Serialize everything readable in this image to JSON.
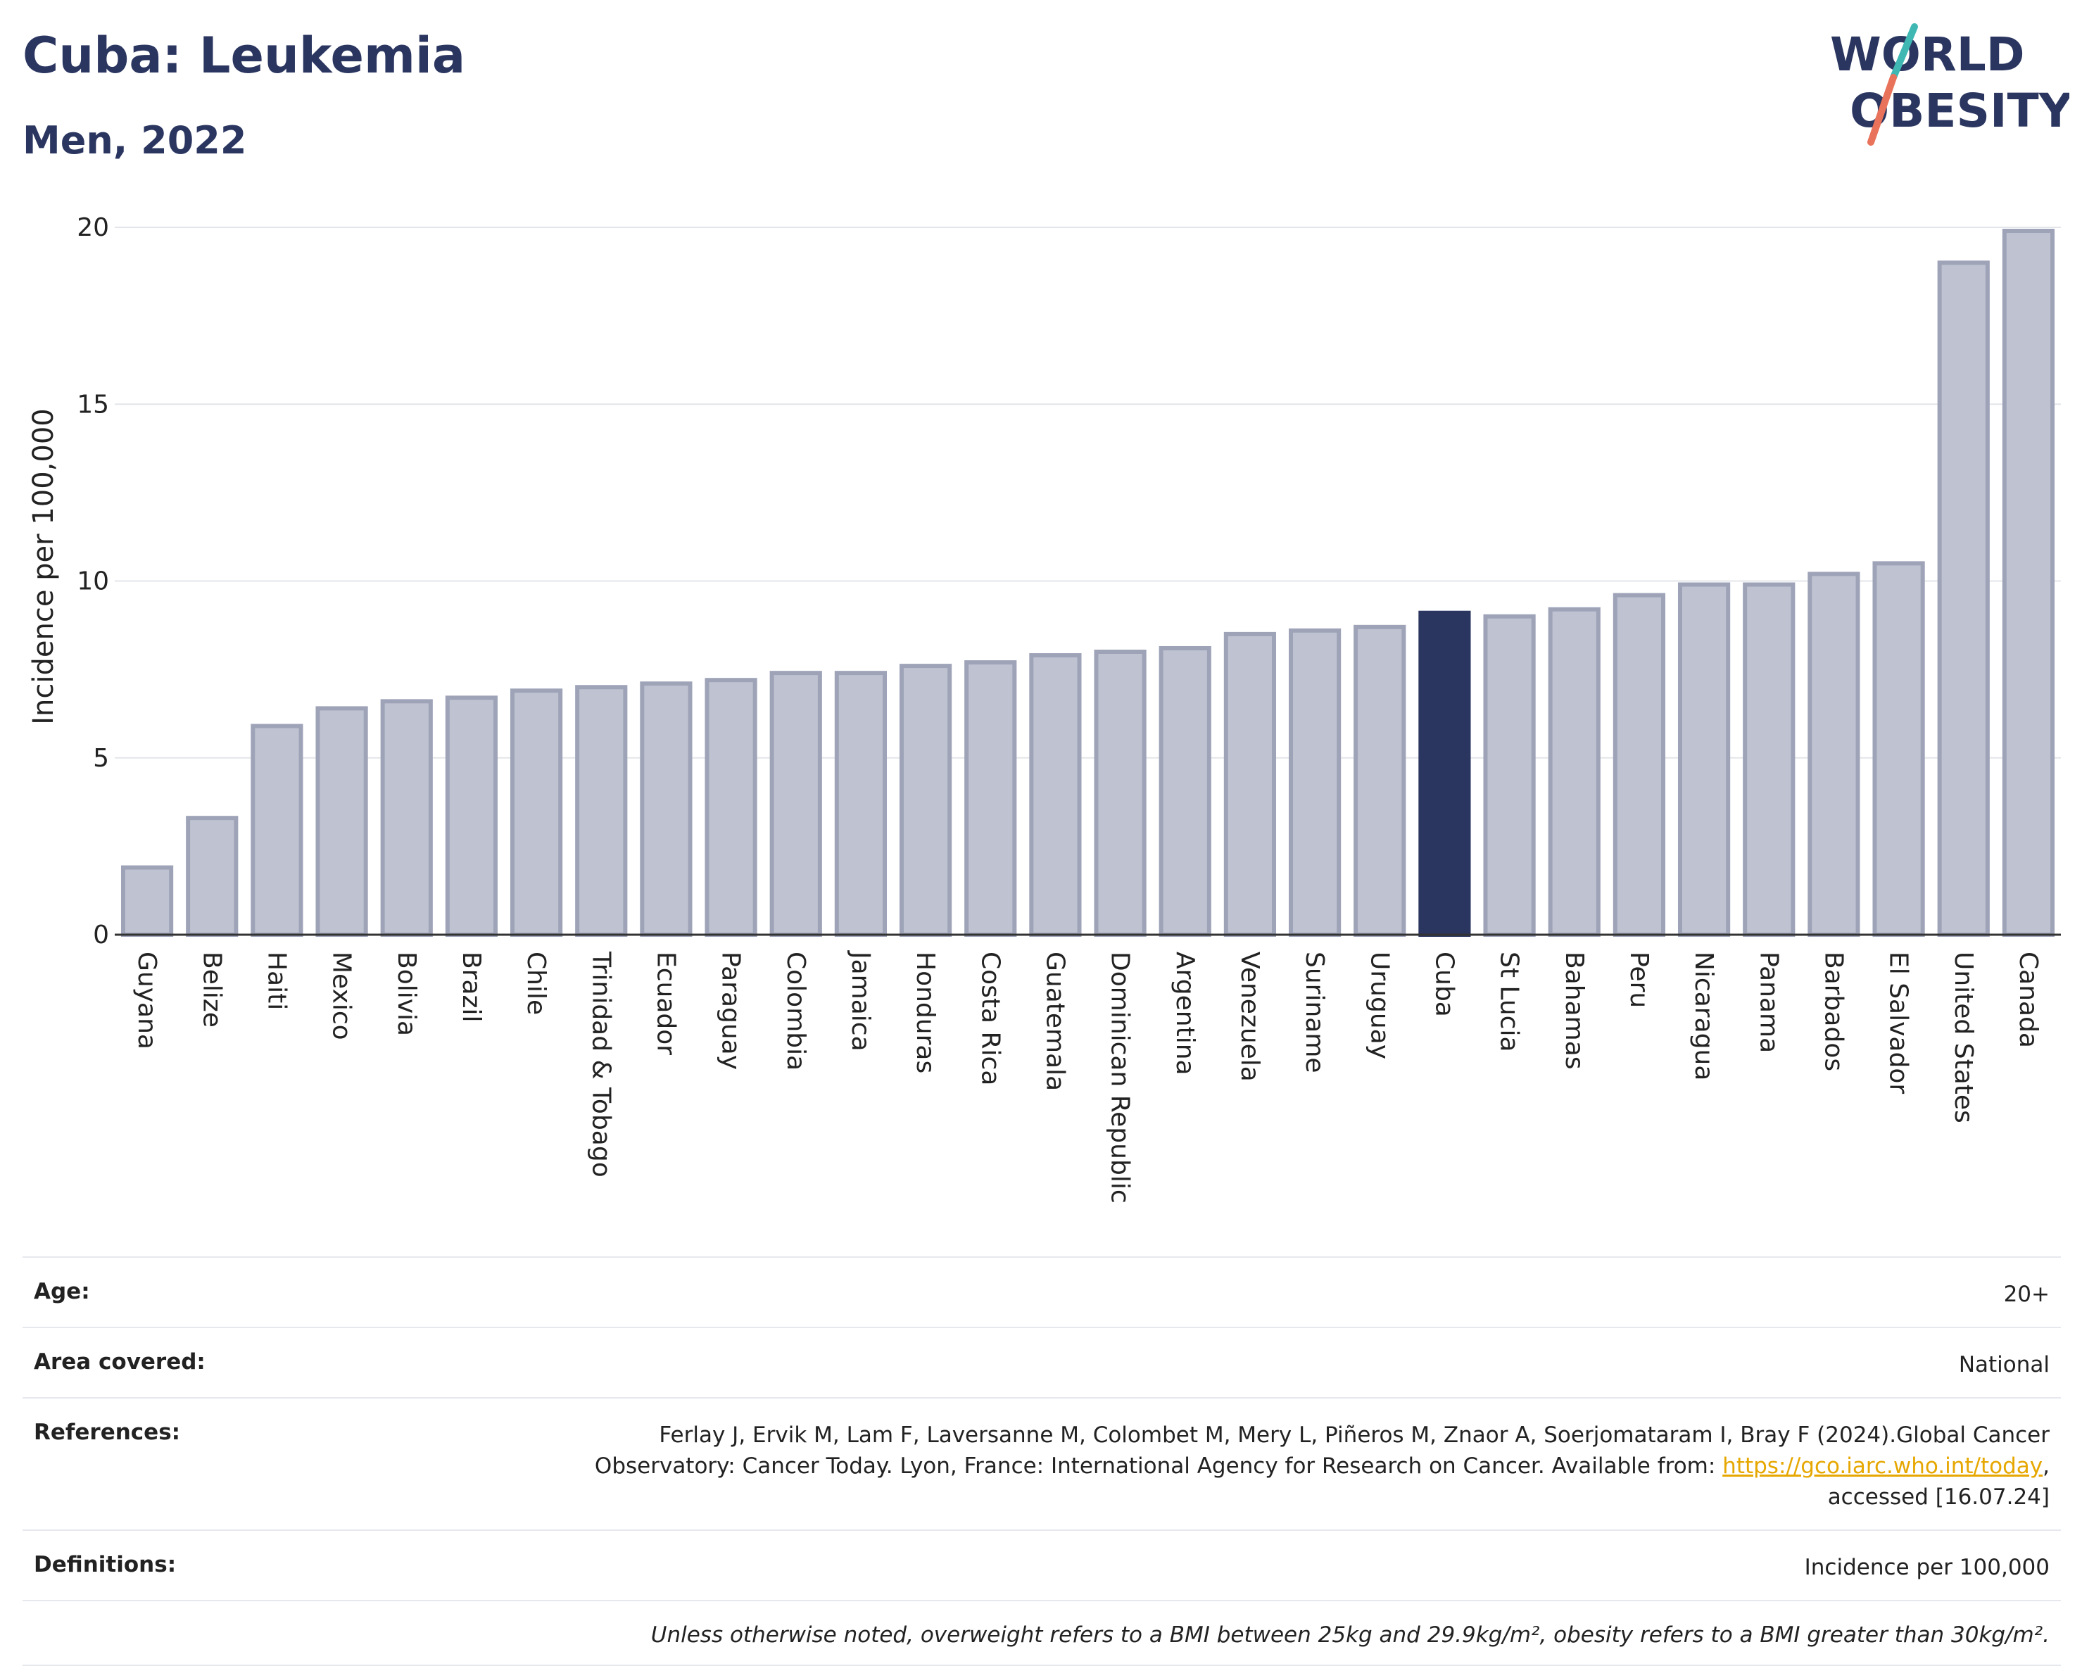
{
  "title": "Cuba: Leukemia",
  "subtitle": "Men, 2022",
  "logo": {
    "line1": "WORLD",
    "line2": "OBESITY"
  },
  "colors": {
    "highlight": "#2b3660",
    "bar_fill": "#bfc3d1",
    "bar_stroke": "#9ea3b8",
    "grid": "#e3e5ea",
    "title": "#2b3660",
    "logo_teal": "#3fb8b3",
    "logo_coral": "#e8725a"
  },
  "chart_data": {
    "type": "bar",
    "ylabel": "Incidence per 100,000",
    "xlabel": "",
    "ylim": [
      0,
      20
    ],
    "yticks": [
      0,
      5,
      10,
      15,
      20
    ],
    "grid": true,
    "highlight": "Cuba",
    "categories": [
      "Guyana",
      "Belize",
      "Haiti",
      "Mexico",
      "Bolivia",
      "Brazil",
      "Chile",
      "Trinidad & Tobago",
      "Ecuador",
      "Paraguay",
      "Colombia",
      "Jamaica",
      "Honduras",
      "Costa Rica",
      "Guatemala",
      "Dominican Republic",
      "Argentina",
      "Venezuela",
      "Suriname",
      "Uruguay",
      "Cuba",
      "St Lucia",
      "Bahamas",
      "Peru",
      "Nicaragua",
      "Panama",
      "Barbados",
      "El Salvador",
      "United States",
      "Canada"
    ],
    "values": [
      1.9,
      3.3,
      5.9,
      6.4,
      6.6,
      6.7,
      6.9,
      7.0,
      7.1,
      7.2,
      7.4,
      7.4,
      7.6,
      7.7,
      7.9,
      8.0,
      8.1,
      8.5,
      8.6,
      8.7,
      9.1,
      9.0,
      9.2,
      9.6,
      9.9,
      9.9,
      10.2,
      10.5,
      19.0,
      19.9
    ]
  },
  "info": {
    "age_label": "Age:",
    "age_value": "20+",
    "area_label": "Area covered:",
    "area_value": "National",
    "references_label": "References:",
    "references_text_1": "Ferlay J, Ervik M, Lam F, Laversanne M, Colombet M, Mery L, Piñeros M, Znaor A, Soerjomataram I, Bray F (2024).Global Cancer Observatory: Cancer Today. Lyon, France: International Agency for Research on Cancer. Available from: ",
    "references_link": "https://gco.iarc.who.int/today",
    "references_text_2": ", accessed [16.07.24]",
    "definitions_label": "Definitions:",
    "definitions_value": "Incidence per 100,000",
    "note": "Unless otherwise noted, overweight refers to a BMI between 25kg and 29.9kg/m², obesity refers to a BMI greater than 30kg/m²."
  }
}
